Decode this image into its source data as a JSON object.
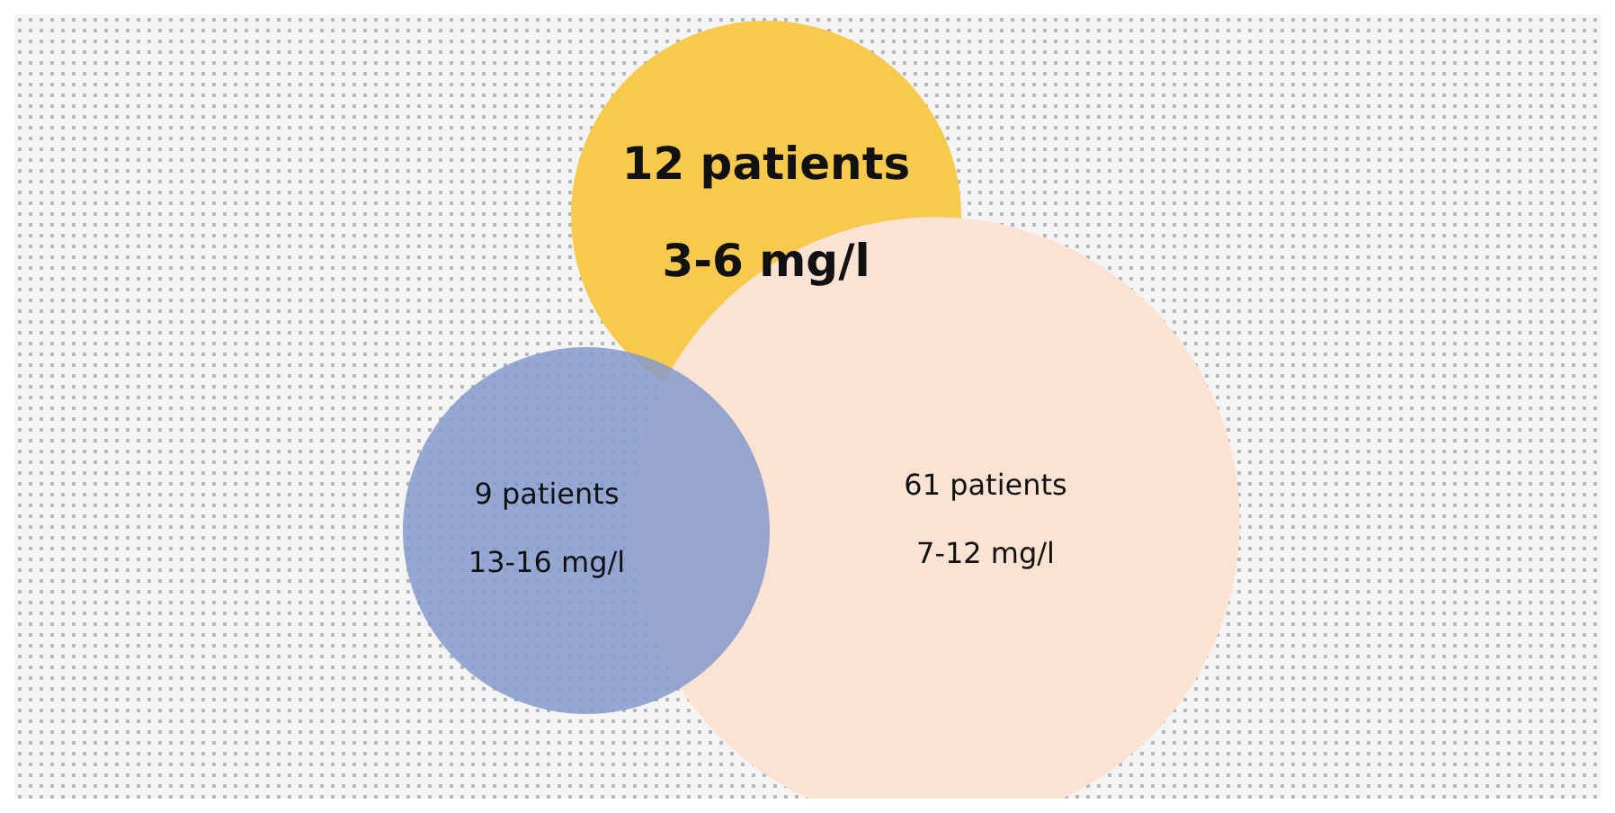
{
  "chart_data": {
    "type": "other",
    "categories": [
      "3-6 mg/l",
      "7-12 mg/l",
      "13-16 mg/l"
    ],
    "values": [
      12,
      61,
      9
    ],
    "value_labels": [
      "12 patients",
      "61 patients",
      "9 patients"
    ],
    "colors": [
      "#f7ca4d",
      "#fbe3d4",
      "#8499cc"
    ]
  }
}
